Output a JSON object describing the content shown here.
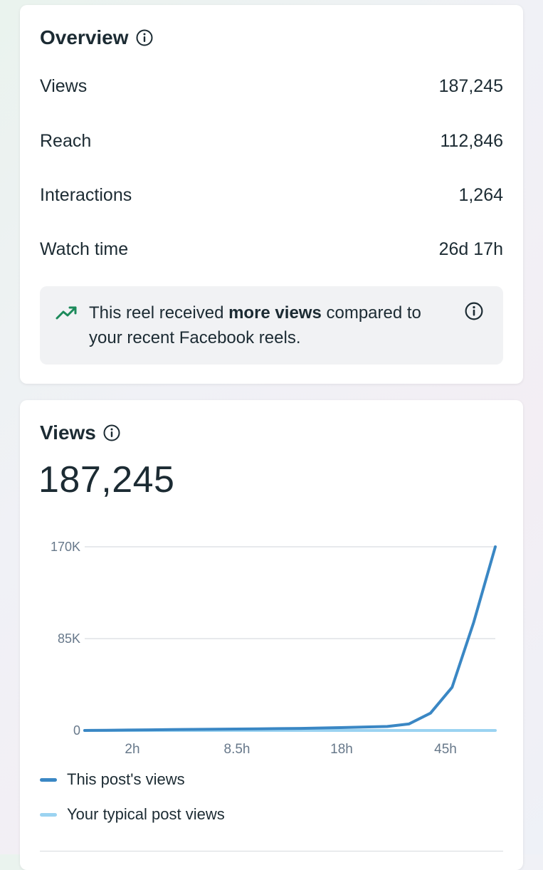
{
  "overview": {
    "title": "Overview",
    "metrics": [
      {
        "label": "Views",
        "value": "187,245"
      },
      {
        "label": "Reach",
        "value": "112,846"
      },
      {
        "label": "Interactions",
        "value": "1,264"
      },
      {
        "label": "Watch time",
        "value": "26d 17h"
      }
    ],
    "callout": {
      "text_before": "This reel received ",
      "text_bold": "more views",
      "text_after": " compared to your recent Facebook reels.",
      "icon": "trending-up-icon"
    }
  },
  "views_card": {
    "title": "Views",
    "total": "187,245"
  },
  "colors": {
    "this_post": "#3a87c4",
    "typical": "#9bd3f1",
    "trend_icon": "#1c8a5a",
    "grid": "#dfe2e5",
    "axis_text": "#67788a"
  },
  "chart_data": {
    "type": "line",
    "x_tick_labels": [
      "2h",
      "8.5h",
      "18h",
      "45h"
    ],
    "y_tick_labels": [
      "170K",
      "85K",
      "0"
    ],
    "ylim": [
      0,
      170000
    ],
    "legend_position": "bottom",
    "grid": true,
    "series": [
      {
        "name": "This post's views",
        "color": "#3a87c4",
        "values": [
          0,
          200,
          400,
          600,
          800,
          1000,
          1100,
          1300,
          1500,
          1700,
          1900,
          2300,
          2700,
          3200,
          3700,
          6000,
          16000,
          40000,
          100000,
          170000
        ]
      },
      {
        "name": "Your typical post views",
        "color": "#9bd3f1",
        "values": [
          0,
          0,
          0,
          0,
          0,
          0,
          0,
          0,
          0,
          0,
          0,
          0,
          0,
          0,
          0,
          0,
          0,
          0,
          0,
          0
        ]
      }
    ]
  }
}
